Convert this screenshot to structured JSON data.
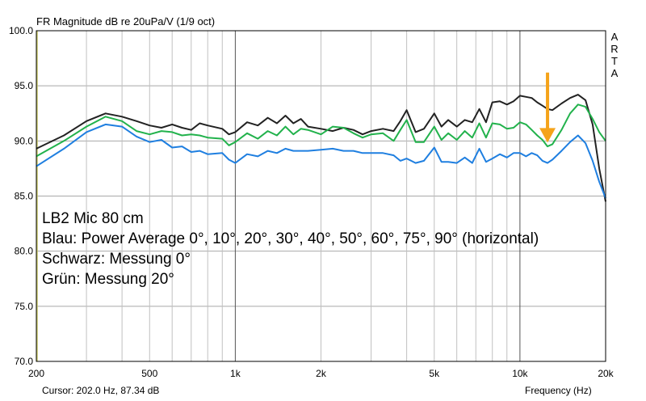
{
  "chart_data": {
    "type": "line",
    "title": "FR Magnitude dB re 20uPa/V (1/9 oct)",
    "xlabel": "Frequency (Hz)",
    "ylabel": "",
    "x_scale": "log",
    "xlim": [
      200,
      20000
    ],
    "ylim": [
      70,
      100
    ],
    "grid": true,
    "xtick_labels": [
      "200",
      "500",
      "1k",
      "2k",
      "5k",
      "10k",
      "20k"
    ],
    "xtick_values": [
      200,
      500,
      1000,
      2000,
      5000,
      10000,
      20000
    ],
    "ytick_labels": [
      "100.0",
      "95.0",
      "90.0",
      "85.0",
      "80.0",
      "75.0",
      "70.0"
    ],
    "ytick_values": [
      100,
      95,
      90,
      85,
      80,
      75,
      70
    ],
    "brand": [
      "A",
      "R",
      "T",
      "A"
    ],
    "annotations": [
      "LB2 Mic 80 cm",
      "Blau: Power Average 0°, 10°, 20°, 30°, 40°, 50°, 60°, 75°, 90° (horizontal)",
      "Schwarz: Messung 0°",
      "Grün: Messung 20°"
    ],
    "arrow": {
      "x": 12500,
      "y_from": 96.2,
      "y_to": 90.0,
      "color": "#f5a31a"
    },
    "series": [
      {
        "color": "#222222",
        "points": [
          [
            200,
            89.3
          ],
          [
            250,
            90.5
          ],
          [
            300,
            91.8
          ],
          [
            350,
            92.5
          ],
          [
            400,
            92.2
          ],
          [
            450,
            91.8
          ],
          [
            500,
            91.4
          ],
          [
            550,
            91.2
          ],
          [
            600,
            91.5
          ],
          [
            650,
            91.2
          ],
          [
            700,
            91.0
          ],
          [
            750,
            91.6
          ],
          [
            800,
            91.4
          ],
          [
            900,
            91.1
          ],
          [
            950,
            90.6
          ],
          [
            1000,
            90.8
          ],
          [
            1100,
            91.7
          ],
          [
            1200,
            91.4
          ],
          [
            1300,
            92.1
          ],
          [
            1400,
            91.6
          ],
          [
            1500,
            92.3
          ],
          [
            1600,
            91.6
          ],
          [
            1700,
            92.0
          ],
          [
            1800,
            91.3
          ],
          [
            2000,
            91.1
          ],
          [
            2200,
            90.9
          ],
          [
            2400,
            91.2
          ],
          [
            2600,
            91.0
          ],
          [
            2800,
            90.6
          ],
          [
            3000,
            90.9
          ],
          [
            3300,
            91.1
          ],
          [
            3600,
            90.9
          ],
          [
            3800,
            91.8
          ],
          [
            4000,
            92.8
          ],
          [
            4300,
            90.8
          ],
          [
            4600,
            91.1
          ],
          [
            5000,
            92.5
          ],
          [
            5300,
            91.3
          ],
          [
            5600,
            91.9
          ],
          [
            6000,
            91.3
          ],
          [
            6400,
            91.9
          ],
          [
            6800,
            91.7
          ],
          [
            7200,
            92.9
          ],
          [
            7600,
            91.7
          ],
          [
            8000,
            93.5
          ],
          [
            8500,
            93.6
          ],
          [
            9000,
            93.3
          ],
          [
            9500,
            93.6
          ],
          [
            10000,
            94.1
          ],
          [
            10500,
            94.0
          ],
          [
            11000,
            93.9
          ],
          [
            11500,
            93.5
          ],
          [
            12000,
            93.2
          ],
          [
            12500,
            92.9
          ],
          [
            13000,
            92.8
          ],
          [
            14000,
            93.4
          ],
          [
            15000,
            93.9
          ],
          [
            16000,
            94.2
          ],
          [
            17000,
            93.7
          ],
          [
            18000,
            91.5
          ],
          [
            19000,
            87.5
          ],
          [
            20000,
            84.5
          ]
        ]
      },
      {
        "color": "#22b24c",
        "points": [
          [
            200,
            88.6
          ],
          [
            250,
            90.0
          ],
          [
            300,
            91.3
          ],
          [
            350,
            92.2
          ],
          [
            400,
            91.8
          ],
          [
            450,
            90.9
          ],
          [
            500,
            90.6
          ],
          [
            550,
            90.9
          ],
          [
            600,
            90.8
          ],
          [
            650,
            90.5
          ],
          [
            700,
            90.6
          ],
          [
            750,
            90.5
          ],
          [
            800,
            90.3
          ],
          [
            900,
            90.2
          ],
          [
            950,
            89.6
          ],
          [
            1000,
            89.9
          ],
          [
            1100,
            90.7
          ],
          [
            1200,
            90.2
          ],
          [
            1300,
            90.9
          ],
          [
            1400,
            90.5
          ],
          [
            1500,
            91.3
          ],
          [
            1600,
            90.6
          ],
          [
            1700,
            91.1
          ],
          [
            1800,
            91.0
          ],
          [
            2000,
            90.6
          ],
          [
            2200,
            91.3
          ],
          [
            2400,
            91.2
          ],
          [
            2600,
            90.7
          ],
          [
            2800,
            90.3
          ],
          [
            3000,
            90.6
          ],
          [
            3300,
            90.7
          ],
          [
            3600,
            90.0
          ],
          [
            3800,
            91.0
          ],
          [
            4000,
            91.9
          ],
          [
            4300,
            89.9
          ],
          [
            4600,
            89.9
          ],
          [
            5000,
            91.3
          ],
          [
            5300,
            90.1
          ],
          [
            5600,
            90.7
          ],
          [
            6000,
            90.1
          ],
          [
            6400,
            90.9
          ],
          [
            6800,
            90.3
          ],
          [
            7200,
            91.6
          ],
          [
            7600,
            90.3
          ],
          [
            8000,
            91.6
          ],
          [
            8500,
            91.5
          ],
          [
            9000,
            91.1
          ],
          [
            9500,
            91.2
          ],
          [
            10000,
            91.7
          ],
          [
            10500,
            91.5
          ],
          [
            11000,
            91.0
          ],
          [
            11500,
            90.5
          ],
          [
            12000,
            90.1
          ],
          [
            12500,
            89.5
          ],
          [
            13000,
            89.7
          ],
          [
            14000,
            91.0
          ],
          [
            15000,
            92.5
          ],
          [
            16000,
            93.3
          ],
          [
            17000,
            93.1
          ],
          [
            18000,
            92.0
          ],
          [
            19000,
            90.8
          ],
          [
            20000,
            90.0
          ]
        ]
      },
      {
        "color": "#1f7fe0",
        "points": [
          [
            200,
            87.7
          ],
          [
            250,
            89.3
          ],
          [
            300,
            90.8
          ],
          [
            350,
            91.5
          ],
          [
            400,
            91.3
          ],
          [
            450,
            90.4
          ],
          [
            500,
            89.9
          ],
          [
            550,
            90.1
          ],
          [
            600,
            89.4
          ],
          [
            650,
            89.5
          ],
          [
            700,
            89.0
          ],
          [
            750,
            89.1
          ],
          [
            800,
            88.8
          ],
          [
            900,
            88.9
          ],
          [
            950,
            88.3
          ],
          [
            1000,
            88.0
          ],
          [
            1100,
            88.8
          ],
          [
            1200,
            88.6
          ],
          [
            1300,
            89.1
          ],
          [
            1400,
            88.9
          ],
          [
            1500,
            89.3
          ],
          [
            1600,
            89.1
          ],
          [
            1700,
            89.1
          ],
          [
            1800,
            89.1
          ],
          [
            2000,
            89.2
          ],
          [
            2200,
            89.3
          ],
          [
            2400,
            89.1
          ],
          [
            2600,
            89.1
          ],
          [
            2800,
            88.9
          ],
          [
            3000,
            88.9
          ],
          [
            3300,
            88.9
          ],
          [
            3600,
            88.7
          ],
          [
            3800,
            88.2
          ],
          [
            4000,
            88.4
          ],
          [
            4300,
            88.0
          ],
          [
            4600,
            88.2
          ],
          [
            5000,
            89.4
          ],
          [
            5300,
            88.1
          ],
          [
            5600,
            88.1
          ],
          [
            6000,
            88.0
          ],
          [
            6400,
            88.5
          ],
          [
            6800,
            88.0
          ],
          [
            7200,
            89.3
          ],
          [
            7600,
            88.1
          ],
          [
            8000,
            88.4
          ],
          [
            8500,
            88.8
          ],
          [
            9000,
            88.5
          ],
          [
            9500,
            88.9
          ],
          [
            10000,
            88.9
          ],
          [
            10500,
            88.6
          ],
          [
            11000,
            88.9
          ],
          [
            11500,
            88.7
          ],
          [
            12000,
            88.2
          ],
          [
            12500,
            88.0
          ],
          [
            13000,
            88.3
          ],
          [
            14000,
            89.1
          ],
          [
            15000,
            89.9
          ],
          [
            16000,
            90.5
          ],
          [
            17000,
            89.8
          ],
          [
            18000,
            88.2
          ],
          [
            19000,
            86.3
          ],
          [
            20000,
            84.8
          ]
        ]
      }
    ]
  },
  "status": {
    "cursor": "Cursor: 202.0 Hz, 87.34 dB",
    "axis_label": "Frequency (Hz)"
  }
}
